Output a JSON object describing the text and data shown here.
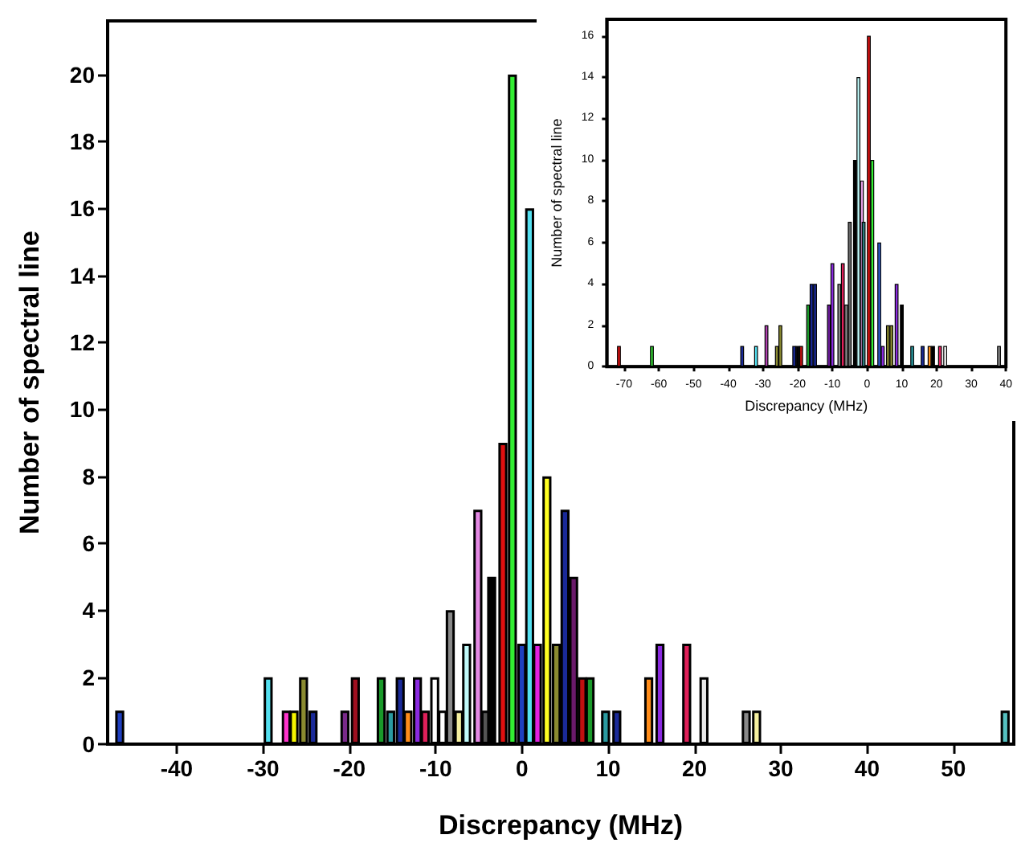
{
  "chart_data": [
    {
      "type": "bar",
      "xlabel": "Discrepancy (MHz)",
      "ylabel": "Number of spectral line",
      "x": [
        -46.6,
        -29.4,
        -27.3,
        -26.4,
        -25.3,
        -24.2,
        -20.5,
        -19.3,
        -16.3,
        -15.2,
        -14.1,
        -13.2,
        -12.1,
        -11.2,
        -10.1,
        -9.2,
        -8.3,
        -7.3,
        -6.4,
        -5.1,
        -4.2,
        -3.5,
        -2.2,
        -1.1,
        0.0,
        0.9,
        1.8,
        2.9,
        4.0,
        5.0,
        6.0,
        7.0,
        7.9,
        9.7,
        11.0,
        14.7,
        16.0,
        19.1,
        21.1,
        26.0,
        27.2,
        56.0
      ],
      "values": [
        1,
        2,
        1,
        1,
        2,
        1,
        1,
        2,
        2,
        1,
        2,
        1,
        2,
        1,
        2,
        1,
        4,
        1,
        3,
        7,
        1,
        5,
        9,
        20,
        3,
        16,
        3,
        8,
        3,
        7,
        5,
        2,
        2,
        1,
        1,
        2,
        3,
        3,
        2,
        1,
        1,
        1
      ],
      "colors": [
        "#1f3fbf",
        "#55e0f0",
        "#ff33cc",
        "#f5f500",
        "#8a8a30",
        "#1a2a99",
        "#7a2a8a",
        "#a01020",
        "#1a9a2a",
        "#2a9aa0",
        "#1a2a99",
        "#ff8c1a",
        "#8a2ae0",
        "#e0205a",
        "#ffffff",
        "#ffffff",
        "#888888",
        "#f5f0a0",
        "#c0fafa",
        "#e58ae5",
        "#555555",
        "#000000",
        "#e01010",
        "#33ee33",
        "#1f3fbf",
        "#55e0f0",
        "#e020e0",
        "#ffff22",
        "#8a8a30",
        "#1a2a99",
        "#6a1a6a",
        "#c01010",
        "#1a9a2a",
        "#2a9aa0",
        "#1a2a99",
        "#ff8c1a",
        "#8a2ae0",
        "#e0205a",
        "#e8e8e8",
        "#888888",
        "#f5f0a0",
        "#55c0c0"
      ],
      "xlim": [
        -48,
        57
      ],
      "xticks": [
        -40,
        -30,
        -20,
        -10,
        0,
        10,
        20,
        30,
        40,
        50
      ],
      "ylim": [
        0,
        21.6
      ],
      "yticks": [
        0,
        2,
        4,
        6,
        8,
        10,
        12,
        14,
        16,
        18,
        20
      ]
    },
    {
      "type": "bar",
      "xlabel": "Discrepancy (MHz)",
      "ylabel": "Number of spectral line",
      "x": [
        -71.5,
        -62,
        -36,
        -32,
        -29,
        -26,
        -25,
        -21,
        -20,
        -19,
        -17,
        -16,
        -15,
        -11,
        -10,
        -8,
        -7,
        -6,
        -5,
        -4,
        -3.5,
        -2.5,
        -1.5,
        -1,
        0.5,
        1.5,
        3.5,
        4.5,
        6,
        7,
        8.5,
        10,
        13,
        16,
        18,
        19,
        21,
        22.5,
        38
      ],
      "values": [
        1,
        1,
        1,
        1,
        2,
        1,
        2,
        1,
        1,
        1,
        3,
        4,
        4,
        3,
        5,
        4,
        5,
        3,
        7,
        null,
        10,
        14,
        9,
        7,
        16,
        10,
        6,
        1,
        2,
        2,
        4,
        3,
        1,
        1,
        1,
        1,
        1,
        1,
        1
      ],
      "colors": [
        "#e01010",
        "#33cc33",
        "#1a2a99",
        "#55e0f0",
        "#b040b0",
        "#8a8a30",
        "#8a8a30",
        "#1a2a99",
        "#000000",
        "#c01010",
        "#1a9a2a",
        "#1a2a99",
        "#1a2a99",
        "#6a1a9a",
        "#8a2ae0",
        "#888888",
        "#e0205a",
        "#888888",
        "#666666",
        "#333333",
        "#000000",
        "#c0fafa",
        "#e8a0e8",
        "#2a7a80",
        "#e01010",
        "#33ee33",
        "#2a5ad0",
        "#8a2ae0",
        "#8a8a30",
        "#8a8a30",
        "#8a2ae0",
        "#000000",
        "#2a9aa0",
        "#1a2a99",
        "#ff8c1a",
        "#000000",
        "#e0205a",
        "#ffffff",
        "#888888"
      ],
      "xlim": [
        -75,
        40
      ],
      "xticks": [
        -70,
        -60,
        -50,
        -40,
        -30,
        -20,
        -10,
        0,
        10,
        20,
        30,
        40
      ],
      "ylim": [
        0,
        16.8
      ],
      "yticks": [
        0,
        2,
        4,
        6,
        8,
        10,
        12,
        14,
        16
      ]
    }
  ]
}
